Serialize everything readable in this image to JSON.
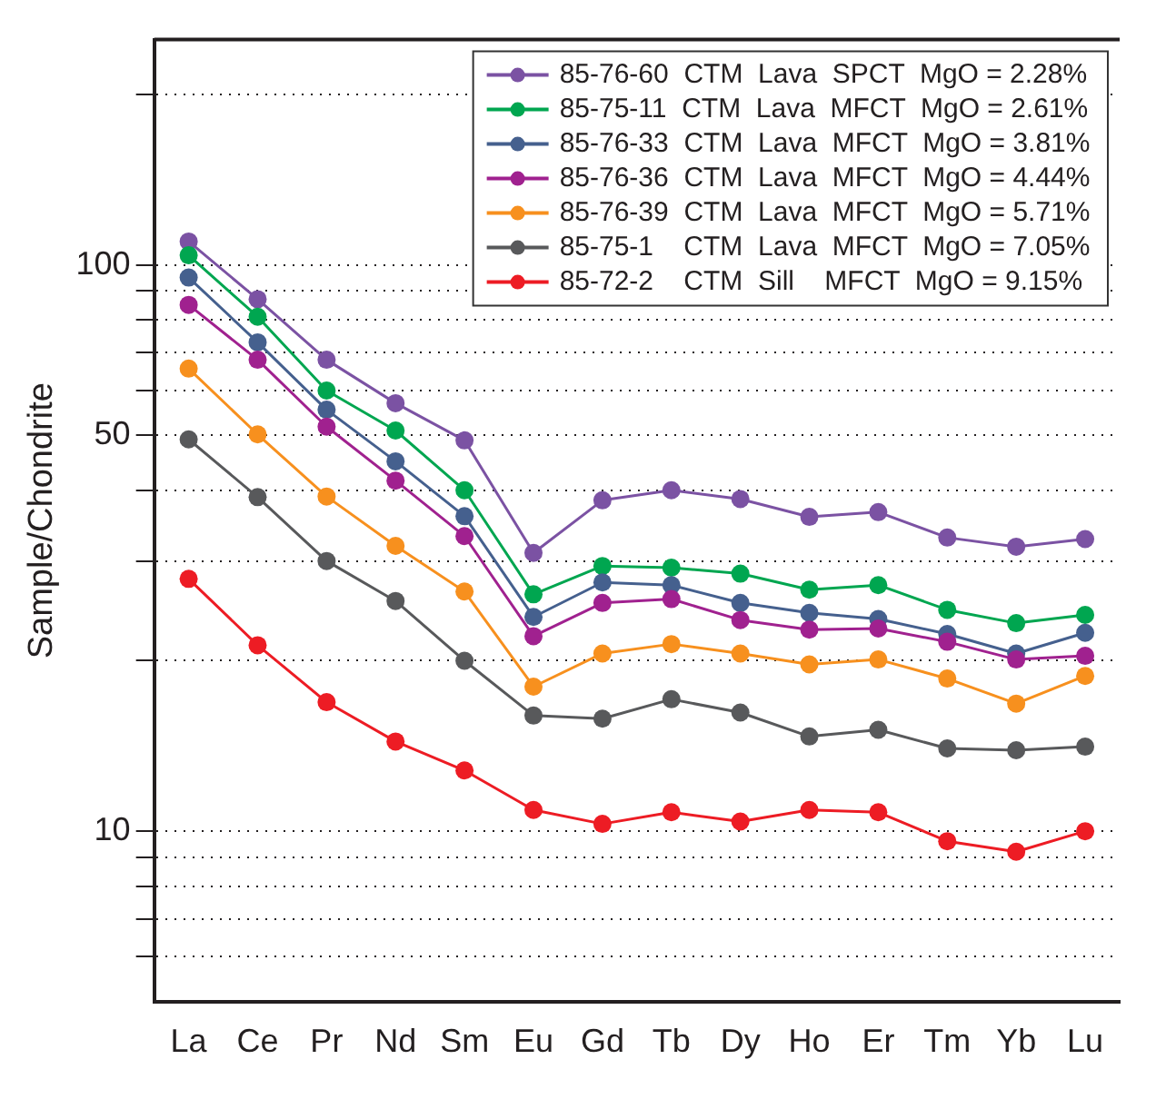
{
  "chart_data": {
    "type": "line",
    "ylabel": "Sample/Chondrite",
    "categories": [
      "La",
      "Ce",
      "Pr",
      "Nd",
      "Sm",
      "Eu",
      "Gd",
      "Tb",
      "Dy",
      "Ho",
      "Er",
      "Tm",
      "Yb",
      "Lu"
    ],
    "series": [
      {
        "name": "85-76-60  CTM  Lava  SPCT  MgO = 2.28%",
        "color": "#7b52a3",
        "values": [
          110,
          87,
          68,
          57,
          49,
          31,
          38.4,
          40,
          38.6,
          35.9,
          36.6,
          33,
          31.8,
          32.8
        ]
      },
      {
        "name": "85-75-11  CTM  Lava  MFCT  MgO = 2.61%",
        "color": "#00a650",
        "values": [
          104,
          81,
          60,
          51,
          40,
          26.2,
          29.4,
          29.2,
          28.5,
          26.7,
          27.2,
          24.6,
          23.3,
          24.1
        ]
      },
      {
        "name": "85-76-33  CTM  Lava  MFCT  MgO = 3.81%",
        "color": "#45608e",
        "values": [
          95,
          73,
          55.5,
          45,
          36,
          23.9,
          27.5,
          27.2,
          25.3,
          24.3,
          23.7,
          22.3,
          20.6,
          22.4
        ]
      },
      {
        "name": "85-76-36  CTM  Lava  MFCT  MgO = 4.44%",
        "color": "#a0218f",
        "values": [
          85,
          68,
          51.8,
          41.6,
          33.2,
          22.1,
          25.3,
          25.7,
          23.6,
          22.7,
          22.8,
          21.6,
          20.1,
          20.4
        ]
      },
      {
        "name": "85-76-39  CTM  Lava  MFCT  MgO = 5.71%",
        "color": "#f7901e",
        "values": [
          65.6,
          50.2,
          39,
          31.9,
          26.5,
          18,
          20.6,
          21.4,
          20.6,
          19.7,
          20.1,
          18.6,
          16.8,
          18.8
        ]
      },
      {
        "name": "85-75-1    CTM  Lava  MFCT  MgO = 7.05%",
        "color": "#58595b",
        "values": [
          49.2,
          38.9,
          30,
          25.5,
          20,
          16,
          15.8,
          17.1,
          16.2,
          14.7,
          15.1,
          14,
          13.9,
          14.1
        ]
      },
      {
        "name": "85-72-2    CTM  Sill    MFCT  MgO = 9.15%",
        "color": "#ed1c24",
        "values": [
          27.9,
          21.3,
          16.9,
          14.4,
          12.8,
          10.9,
          10.3,
          10.8,
          10.4,
          10.9,
          10.8,
          9.6,
          9.2,
          10
        ]
      }
    ],
    "log": "y",
    "ylim": [
      5,
      250
    ],
    "yticks": [
      {
        "value": 6,
        "label": null
      },
      {
        "value": 7,
        "label": null
      },
      {
        "value": 8,
        "label": null
      },
      {
        "value": 9,
        "label": null
      },
      10,
      {
        "value": 20,
        "label": null
      },
      {
        "value": 30,
        "label": null
      },
      {
        "value": 40,
        "label": null
      },
      50,
      {
        "value": 60,
        "label": null
      },
      {
        "value": 70,
        "label": null
      },
      {
        "value": 80,
        "label": null
      },
      {
        "value": 90,
        "label": null
      },
      100,
      {
        "value": 200,
        "label": null
      }
    ],
    "grid": "y",
    "legend": "top right",
    "marker": "circle",
    "line_style": "solid"
  }
}
